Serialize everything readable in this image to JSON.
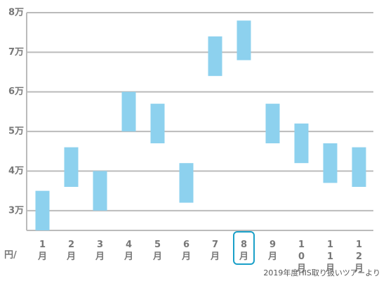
{
  "chart_data": {
    "type": "floating_bar",
    "categories": [
      "1月",
      "2月",
      "3月",
      "4月",
      "5月",
      "6月",
      "7月",
      "8月",
      "9月",
      "10月",
      "11月",
      "12月"
    ],
    "low": [
      2.5,
      3.6,
      3.0,
      5.0,
      4.7,
      3.2,
      6.4,
      6.8,
      4.7,
      4.2,
      3.7,
      3.6
    ],
    "high": [
      3.5,
      4.6,
      4.0,
      6.0,
      5.7,
      4.2,
      7.4,
      7.8,
      5.7,
      5.2,
      4.7,
      4.6
    ],
    "color": "#8dd1ee",
    "ylim": [
      2.5,
      8
    ],
    "yticks": [
      {
        "value": 3,
        "label": "3万"
      },
      {
        "value": 4,
        "label": "4万"
      },
      {
        "value": 5,
        "label": "5万"
      },
      {
        "value": 6,
        "label": "6万"
      },
      {
        "value": 7,
        "label": "7万"
      },
      {
        "value": 8,
        "label": "8万"
      }
    ],
    "y_unit_label": "円/",
    "source": "2019年度HIS取り扱いツアーより",
    "grid": true,
    "highlighted_category": 7
  }
}
